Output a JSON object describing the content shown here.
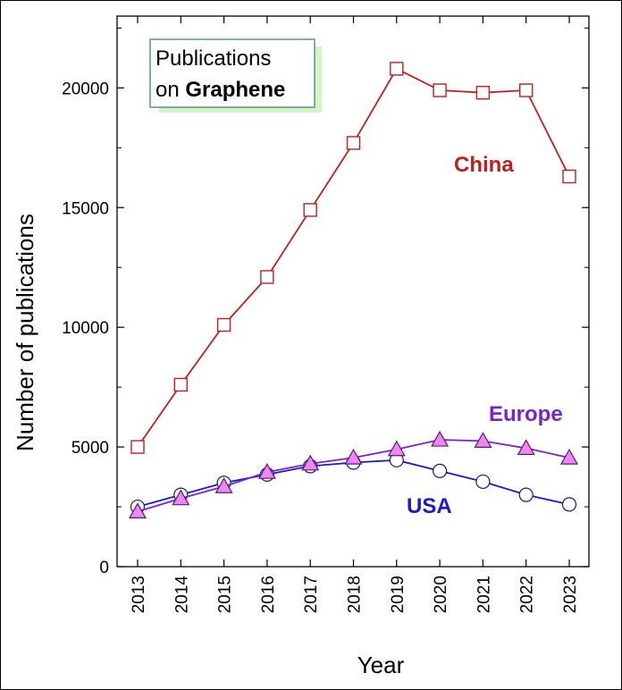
{
  "chart_data": {
    "type": "line",
    "legend_box": {
      "line1": "Publications",
      "line2_prefix": "on ",
      "line2_bold": "Graphene"
    },
    "xlabel": "Year",
    "ylabel": "Number of publications",
    "categories": [
      "2013",
      "2014",
      "2015",
      "2016",
      "2017",
      "2018",
      "2019",
      "2020",
      "2021",
      "2022",
      "2023"
    ],
    "ylim": [
      0,
      23000
    ],
    "yticks": [
      0,
      5000,
      10000,
      15000,
      20000
    ],
    "ytick_labels": [
      "0",
      "5000",
      "10000",
      "15000",
      "20000"
    ],
    "series": [
      {
        "name": "China",
        "marker": "square",
        "color": "#c0201c",
        "fill": "#ffffff",
        "values": [
          5000,
          7600,
          10100,
          12100,
          14900,
          17700,
          20800,
          19900,
          19800,
          19900,
          16300
        ]
      },
      {
        "name": "USA",
        "marker": "circle",
        "color": "#1a1ad0",
        "fill": "#ffffff",
        "values": [
          2500,
          3000,
          3500,
          3850,
          4200,
          4350,
          4450,
          4000,
          3550,
          3000,
          2600
        ]
      },
      {
        "name": "Europe",
        "marker": "triangle",
        "color": "#7b22cc",
        "fill": "#ee88ee",
        "values": [
          2300,
          2850,
          3350,
          3950,
          4300,
          4550,
          4900,
          5300,
          5250,
          4950,
          4550
        ]
      }
    ]
  }
}
